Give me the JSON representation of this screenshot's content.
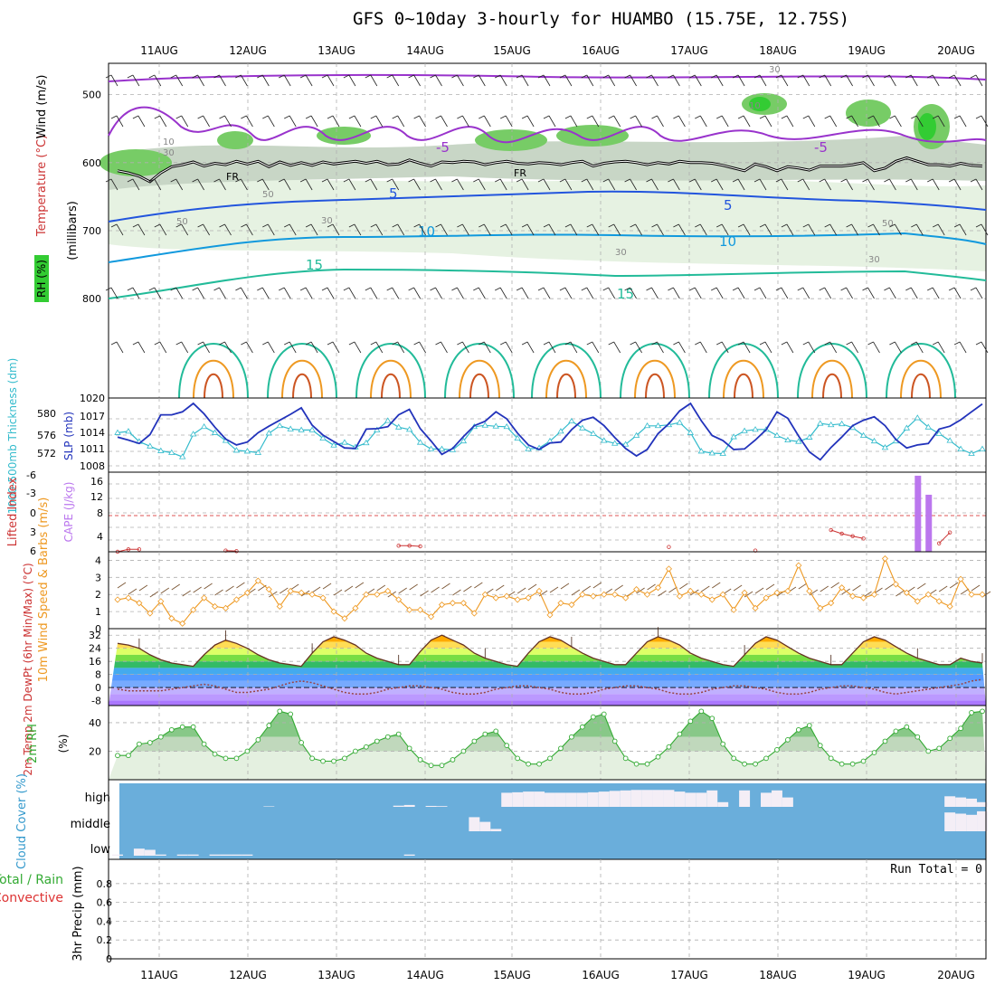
{
  "title": "GFS 0~10day 3-hourly for HUAMBO (15.75E, 12.75S)",
  "date_labels": [
    "11AUG",
    "12AUG",
    "13AUG",
    "14AUG",
    "15AUG",
    "16AUG",
    "17AUG",
    "18AUG",
    "19AUG",
    "20AUG"
  ],
  "colors": {
    "frame": "#000000",
    "grid": "#b0b0b0",
    "rh_green": "#33cc33",
    "temp_purple": "#9933cc",
    "temp_blue1": "#2255dd",
    "temp_blue2": "#1199dd",
    "temp_teal": "#22bb99",
    "temp_orange": "#ee9922",
    "slp_line": "#2233bb",
    "thick_line": "#33bbcc",
    "li_line": "#cc3333",
    "cape_bar": "#bb77ee",
    "wind_line": "#ee9922",
    "rh2m_line": "#33aa33",
    "cloud_bg": "#6aaedb",
    "cloud_fill": "#f4eef6"
  },
  "chart_data": [
    {
      "type": "heatmap",
      "name": "upper-air",
      "ylabel_parts": [
        "RH (%)",
        "Temperature (°C)",
        "Wind (m/s)"
      ],
      "ylabel2": "(millibars)",
      "yticks": [
        500,
        600,
        700,
        800
      ],
      "ylim": [
        946,
        454
      ],
      "contour_labels": {
        "freezing": [
          "FR",
          "FR"
        ],
        "temperature": [
          "-5",
          "-5",
          "5",
          "5",
          "10",
          "10",
          "15",
          "15"
        ],
        "rh": [
          "10",
          "30",
          "50",
          "50",
          "30",
          "30",
          "30",
          "10",
          "50",
          "30"
        ]
      },
      "freezing_level_mb": [
        612,
        615,
        620,
        628,
        615,
        606,
        603,
        599,
        605,
        601,
        603,
        598,
        602,
        598,
        606,
        599,
        604,
        600,
        604,
        599,
        602,
        600,
        598,
        601,
        598,
        603,
        602,
        596,
        601,
        605,
        599,
        600,
        598,
        599,
        603,
        600,
        598,
        601,
        602,
        600,
        601,
        603,
        600,
        598,
        605,
        601,
        599,
        598,
        600,
        603,
        600,
        602,
        598,
        600,
        600,
        601,
        604,
        608,
        612,
        602,
        606,
        612,
        606,
        608,
        611,
        605,
        605,
        605,
        603,
        600,
        612,
        608,
        598,
        593,
        598,
        603,
        603,
        605,
        601,
        604,
        605
      ]
    },
    {
      "type": "line",
      "name": "slp-thickness",
      "ylabel_left": "1000-500mb Thickness (dm)",
      "ylabel_right": "SLP (mb)",
      "ticks_left": [
        "580",
        "576",
        "572"
      ],
      "ticks_right": [
        "1020",
        "1017",
        "1014",
        "1011",
        "1008"
      ],
      "slp_ylim": [
        1005,
        1020
      ],
      "series": [
        {
          "name": "SLP",
          "values": [
            1012.1,
            1011.5,
            1010.8,
            1012.6,
            1016.6,
            1016.6,
            1017.2,
            1018.9,
            1016.8,
            1014.1,
            1011.7,
            1010.5,
            1011.1,
            1013.0,
            1014.3,
            1015.5,
            1016.7,
            1018.0,
            1014.5,
            1012.5,
            1011.2,
            1009.9,
            1009.8,
            1013.7,
            1013.8,
            1014.2,
            1016.6,
            1017.7,
            1013.8,
            1011.3,
            1008.6,
            1009.8,
            1012.2,
            1014.4,
            1015.3,
            1017.2,
            1015.8,
            1012.9,
            1010.5,
            1009.6,
            1010.9,
            1011.1,
            1013.6,
            1015.5,
            1016.1,
            1014.4,
            1012.0,
            1009.8,
            1008.3,
            1009.6,
            1012.8,
            1014.8,
            1017.4,
            1018.9,
            1015.4,
            1012.4,
            1011.4,
            1009.6,
            1009.7,
            1011.5,
            1013.6,
            1017.2,
            1015.9,
            1012.3,
            1009.1,
            1007.5,
            1010.0,
            1012.1,
            1014.4,
            1015.5,
            1016.2,
            1014.4,
            1011.6,
            1009.9,
            1010.5,
            1010.8,
            1013.7,
            1014.3,
            1015.6,
            1017.2,
            1018.8
          ]
        },
        {
          "name": "1000-500mb Thickness",
          "values": [
            576.5,
            576.8,
            574.6,
            573.6,
            572.6,
            572.2,
            571.3,
            576.2,
            577.8,
            576.5,
            574.8,
            572.7,
            572.5,
            572.2,
            576.4,
            578.0,
            577.3,
            577.1,
            577.1,
            575.3,
            573.8,
            574.4,
            573.4,
            574.3,
            577.1,
            579.1,
            577.7,
            577.2,
            574.4,
            573.0,
            573.0,
            572.8,
            574.7,
            577.8,
            578.1,
            577.9,
            577.8,
            575.3,
            573.0,
            573.2,
            574.7,
            576.8,
            579.0,
            577.5,
            576.3,
            574.8,
            574.2,
            574.0,
            575.9,
            578.0,
            578.0,
            578.2,
            578.7,
            576.5,
            572.5,
            572.1,
            572.0,
            575.6,
            576.9,
            577.2,
            577.2,
            575.9,
            574.9,
            574.6,
            575.5,
            578.5,
            578.2,
            578.4,
            577.6,
            575.9,
            574.7,
            573.3,
            574.7,
            577.5,
            579.7,
            577.7,
            576.3,
            574.8,
            573.0,
            572.0,
            573.0
          ]
        }
      ]
    },
    {
      "type": "bar",
      "name": "lifted-index-cape",
      "ylabel_left": "Lifted Index",
      "ylabel_right": "CAPE (J/kg)",
      "ticks_left": [
        "-6",
        "-3",
        "0",
        "3",
        "6"
      ],
      "ticks_right": [
        "16",
        "12",
        "8",
        "4"
      ],
      "cape_ylim": [
        0,
        18
      ],
      "series": [
        {
          "name": "Lifted Index",
          "values": [
            6.0,
            5.6,
            5.6,
            null,
            null,
            null,
            null,
            null,
            null,
            null,
            5.8,
            5.9,
            null,
            null,
            null,
            null,
            null,
            null,
            null,
            null,
            null,
            null,
            null,
            null,
            null,
            null,
            5.0,
            5.0,
            5.1,
            null,
            null,
            null,
            null,
            null,
            null,
            null,
            null,
            null,
            null,
            null,
            null,
            null,
            null,
            null,
            null,
            null,
            null,
            null,
            null,
            null,
            null,
            5.2,
            null,
            null,
            null,
            null,
            null,
            null,
            null,
            5.8,
            null,
            null,
            null,
            null,
            null,
            null,
            2.4,
            3.0,
            3.4,
            3.8,
            null,
            null,
            null,
            null,
            null,
            null,
            4.6,
            2.8,
            null,
            null,
            null
          ]
        },
        {
          "name": "CAPE",
          "values": [
            0,
            0,
            0,
            0,
            0,
            0,
            0,
            0,
            0,
            0,
            0,
            0,
            0,
            0,
            0,
            0,
            0,
            0,
            0,
            0,
            0,
            0,
            0,
            0,
            0,
            0,
            0,
            0,
            0,
            0,
            0,
            0,
            0,
            0,
            0,
            0,
            0,
            0,
            0,
            0,
            0,
            0,
            0,
            0,
            0,
            0,
            0,
            0,
            0,
            0,
            0,
            0,
            0,
            0,
            0,
            0,
            0,
            0,
            0,
            0,
            0,
            0,
            0,
            0,
            0,
            0,
            0,
            0,
            0,
            0,
            0,
            0,
            0,
            0,
            17.2,
            12.9,
            0,
            0,
            0,
            0,
            0
          ]
        }
      ]
    },
    {
      "type": "line",
      "name": "10m-wind",
      "ylabel": "10m Wind Speed & Barbs (m/s)",
      "yticks": [
        "4",
        "3",
        "2",
        "1",
        "0"
      ],
      "ylim": [
        0,
        4.5
      ],
      "values": [
        1.7,
        1.8,
        1.5,
        0.9,
        1.6,
        0.6,
        0.3,
        1.1,
        1.8,
        1.3,
        1.2,
        1.7,
        2.1,
        2.8,
        2.3,
        1.3,
        2.2,
        2.1,
        2.0,
        1.8,
        1.0,
        0.6,
        1.2,
        2.0,
        2.0,
        2.2,
        1.7,
        1.1,
        1.1,
        0.7,
        1.4,
        1.5,
        1.5,
        0.9,
        2.0,
        1.8,
        1.9,
        1.7,
        1.8,
        2.2,
        0.8,
        1.5,
        1.4,
        2.0,
        1.9,
        2.0,
        2.0,
        1.8,
        2.3,
        2.0,
        2.4,
        3.5,
        1.9,
        2.2,
        2.0,
        1.7,
        2.0,
        1.1,
        2.1,
        1.2,
        1.8,
        2.1,
        2.2,
        3.7,
        2.2,
        1.2,
        1.5,
        2.4,
        1.9,
        1.8,
        2.0,
        4.1,
        2.6,
        2.1,
        1.6,
        2.0,
        1.6,
        1.3,
        2.9,
        2.0,
        2.0
      ]
    },
    {
      "type": "area",
      "name": "2m-temp",
      "ylabel": "2m Temp 2m DewPt (6hr Min/Max) (°C)",
      "yticks": [
        "32",
        "24",
        "16",
        "8",
        "0",
        "-8"
      ],
      "ylim": [
        -11,
        36
      ],
      "series": [
        {
          "name": "2m Temp",
          "values": [
            27,
            26,
            24,
            20,
            17,
            15,
            14,
            13,
            20,
            26,
            29,
            27,
            24,
            20,
            17,
            15,
            14,
            13,
            21,
            28,
            31,
            29,
            26,
            21,
            18,
            16,
            14,
            14,
            22,
            29,
            32,
            29,
            26,
            21,
            18,
            16,
            14,
            13,
            21,
            28,
            31,
            29,
            25,
            21,
            18,
            16,
            14,
            14,
            21,
            28,
            31,
            29,
            26,
            21,
            18,
            16,
            14,
            13,
            20,
            27,
            31,
            29,
            25,
            21,
            18,
            16,
            14,
            14,
            21,
            28,
            31,
            29,
            25,
            21,
            18,
            16,
            14,
            14,
            18,
            16,
            15
          ]
        },
        {
          "name": "2m DewPt",
          "values": [
            -1,
            -2,
            -2,
            -2,
            -2,
            -1,
            0,
            1,
            2,
            1,
            -1,
            -3,
            -3,
            -2,
            -1,
            1,
            3,
            4,
            3,
            1,
            -1,
            -3,
            -4,
            -4,
            -3,
            -1,
            0,
            1,
            1,
            0,
            -1,
            -3,
            -4,
            -4,
            -3,
            -1,
            0,
            1,
            1,
            0,
            -1,
            -3,
            -4,
            -4,
            -3,
            -1,
            0,
            1,
            1,
            0,
            -1,
            -3,
            -4,
            -4,
            -3,
            -1,
            0,
            1,
            1,
            0,
            -1,
            -3,
            -4,
            -4,
            -3,
            -1,
            0,
            1,
            1,
            0,
            -1,
            -3,
            -4,
            -3,
            -2,
            -1,
            0,
            1,
            2,
            4,
            5
          ]
        }
      ]
    },
    {
      "type": "area",
      "name": "2m-rh",
      "ylabel": "2m RH",
      "yunit": "(%)",
      "yticks": [
        "40",
        "20"
      ],
      "ylim": [
        0,
        52
      ],
      "values": [
        17,
        17,
        25,
        26,
        30,
        35,
        37,
        37,
        25,
        18,
        15,
        15,
        20,
        28,
        38,
        48,
        46,
        26,
        15,
        13,
        13,
        15,
        20,
        23,
        27,
        30,
        32,
        22,
        14,
        10,
        10,
        14,
        20,
        27,
        32,
        34,
        24,
        15,
        11,
        11,
        15,
        22,
        30,
        37,
        44,
        46,
        27,
        15,
        11,
        11,
        16,
        23,
        32,
        41,
        48,
        43,
        25,
        15,
        11,
        11,
        15,
        21,
        28,
        35,
        38,
        24,
        15,
        11,
        11,
        13,
        19,
        27,
        34,
        37,
        30,
        20,
        22,
        29,
        36,
        47,
        48
      ]
    },
    {
      "type": "area",
      "name": "cloud-cover",
      "ylabel": "Cloud Cover (%)",
      "layers": [
        "high",
        "middle",
        "low"
      ],
      "series": [
        {
          "name": "high",
          "values": [
            0,
            0,
            0,
            0,
            0,
            0,
            0,
            0,
            0,
            0,
            0,
            0,
            0,
            0,
            2,
            0,
            0,
            0,
            0,
            0,
            0,
            0,
            0,
            0,
            0,
            0,
            5,
            8,
            0,
            4,
            3,
            0,
            0,
            0,
            0,
            0,
            60,
            62,
            65,
            65,
            60,
            60,
            60,
            60,
            62,
            65,
            68,
            70,
            72,
            72,
            72,
            72,
            65,
            60,
            60,
            70,
            20,
            0,
            70,
            0,
            60,
            70,
            40,
            0,
            0,
            0,
            0,
            0,
            0,
            0,
            0,
            0,
            0,
            0,
            0,
            0,
            0,
            45,
            40,
            35,
            20
          ]
        },
        {
          "name": "middle",
          "values": [
            0,
            0,
            0,
            0,
            0,
            0,
            0,
            0,
            0,
            0,
            0,
            0,
            0,
            0,
            0,
            0,
            0,
            0,
            0,
            0,
            0,
            0,
            0,
            0,
            0,
            0,
            0,
            0,
            0,
            0,
            0,
            0,
            0,
            60,
            40,
            10,
            0,
            0,
            0,
            0,
            0,
            0,
            0,
            0,
            0,
            0,
            0,
            0,
            0,
            0,
            0,
            0,
            0,
            0,
            0,
            0,
            0,
            0,
            0,
            0,
            0,
            0,
            0,
            0,
            0,
            0,
            0,
            0,
            0,
            0,
            0,
            0,
            0,
            0,
            0,
            0,
            0,
            80,
            75,
            70,
            85
          ]
        },
        {
          "name": "low",
          "values": [
            5,
            0,
            30,
            25,
            5,
            0,
            5,
            5,
            0,
            5,
            5,
            5,
            5,
            0,
            0,
            0,
            0,
            0,
            0,
            0,
            0,
            0,
            0,
            0,
            0,
            0,
            0,
            5,
            0,
            0,
            0,
            0,
            0,
            0,
            0,
            0,
            0,
            0,
            0,
            0,
            0,
            0,
            0,
            0,
            0,
            0,
            0,
            0,
            0,
            0,
            0,
            0,
            0,
            0,
            0,
            0,
            0,
            0,
            0,
            0,
            0,
            0,
            0,
            0,
            0,
            0,
            0,
            0,
            0,
            0,
            0,
            0,
            0,
            0,
            0,
            0,
            0,
            0,
            0,
            0,
            0
          ]
        }
      ]
    },
    {
      "type": "bar",
      "name": "3hr-precip",
      "ylabel": "3hr Precip (mm)",
      "legend_parts": [
        "Total / Rain",
        "Convective"
      ],
      "yticks": [
        "0.8",
        "0.6",
        "0.4",
        "0.2",
        "0"
      ],
      "ylim": [
        0,
        1
      ],
      "annotation": "Run Total = 0",
      "values": []
    }
  ]
}
